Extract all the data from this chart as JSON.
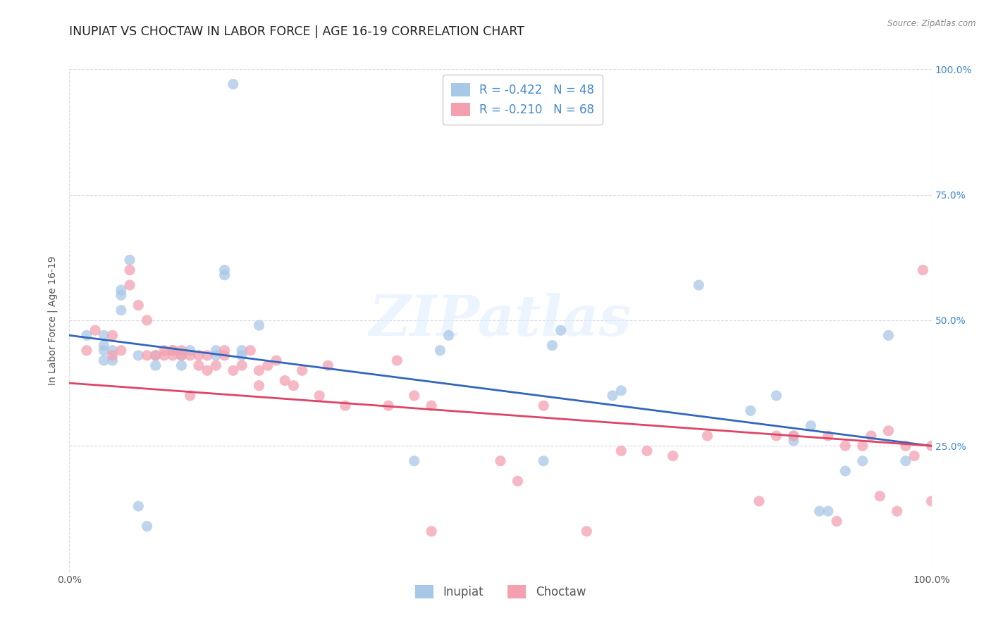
{
  "title": "INUPIAT VS CHOCTAW IN LABOR FORCE | AGE 16-19 CORRELATION CHART",
  "source": "Source: ZipAtlas.com",
  "ylabel": "In Labor Force | Age 16-19",
  "xlim": [
    0.0,
    1.0
  ],
  "ylim": [
    0.0,
    1.0
  ],
  "background_color": "#ffffff",
  "watermark_text": "ZIPatlas",
  "legend_line1": "R = -0.422   N = 48",
  "legend_line2": "R = -0.210   N = 68",
  "inupiat_color": "#a8c8e8",
  "choctaw_color": "#f4a0b0",
  "inupiat_line_color": "#3366bb",
  "choctaw_line_color": "#dd4466",
  "grid_color": "#d8d8e8",
  "right_tick_color": "#4488cc",
  "title_fontsize": 12.5,
  "tick_fontsize": 10,
  "ylabel_fontsize": 10,
  "inupiat_trend_x0": 0.0,
  "inupiat_trend_y0": 0.47,
  "inupiat_trend_x1": 1.0,
  "inupiat_trend_y1": 0.25,
  "choctaw_trend_x0": 0.0,
  "choctaw_trend_y0": 0.375,
  "choctaw_trend_x1": 1.0,
  "choctaw_trend_y1": 0.25,
  "inupiat_x": [
    0.02,
    0.05,
    0.19,
    0.04,
    0.04,
    0.04,
    0.04,
    0.05,
    0.06,
    0.06,
    0.06,
    0.07,
    0.08,
    0.08,
    0.09,
    0.1,
    0.1,
    0.12,
    0.13,
    0.13,
    0.14,
    0.17,
    0.17,
    0.18,
    0.18,
    0.2,
    0.2,
    0.22,
    0.4,
    0.43,
    0.44,
    0.55,
    0.56,
    0.57,
    0.63,
    0.64,
    0.73,
    0.79,
    0.82,
    0.84,
    0.84,
    0.86,
    0.87,
    0.88,
    0.9,
    0.92,
    0.95,
    0.97
  ],
  "inupiat_y": [
    0.47,
    0.44,
    0.97,
    0.42,
    0.44,
    0.45,
    0.47,
    0.42,
    0.52,
    0.55,
    0.56,
    0.62,
    0.13,
    0.43,
    0.09,
    0.41,
    0.43,
    0.44,
    0.41,
    0.43,
    0.44,
    0.43,
    0.44,
    0.59,
    0.6,
    0.43,
    0.44,
    0.49,
    0.22,
    0.44,
    0.47,
    0.22,
    0.45,
    0.48,
    0.35,
    0.36,
    0.57,
    0.32,
    0.35,
    0.26,
    0.27,
    0.29,
    0.12,
    0.12,
    0.2,
    0.22,
    0.47,
    0.22
  ],
  "choctaw_x": [
    0.02,
    0.03,
    0.05,
    0.05,
    0.06,
    0.07,
    0.07,
    0.08,
    0.09,
    0.09,
    0.1,
    0.11,
    0.11,
    0.12,
    0.12,
    0.13,
    0.13,
    0.14,
    0.14,
    0.15,
    0.15,
    0.16,
    0.16,
    0.17,
    0.18,
    0.18,
    0.19,
    0.2,
    0.21,
    0.22,
    0.22,
    0.23,
    0.24,
    0.25,
    0.26,
    0.27,
    0.29,
    0.3,
    0.32,
    0.37,
    0.38,
    0.4,
    0.42,
    0.42,
    0.5,
    0.52,
    0.55,
    0.6,
    0.64,
    0.67,
    0.7,
    0.74,
    0.8,
    0.82,
    0.84,
    0.88,
    0.89,
    0.9,
    0.92,
    0.93,
    0.94,
    0.95,
    0.96,
    0.97,
    0.98,
    0.99,
    1.0,
    1.0
  ],
  "choctaw_y": [
    0.44,
    0.48,
    0.43,
    0.47,
    0.44,
    0.57,
    0.6,
    0.53,
    0.43,
    0.5,
    0.43,
    0.43,
    0.44,
    0.43,
    0.44,
    0.43,
    0.44,
    0.35,
    0.43,
    0.41,
    0.43,
    0.4,
    0.43,
    0.41,
    0.43,
    0.44,
    0.4,
    0.41,
    0.44,
    0.37,
    0.4,
    0.41,
    0.42,
    0.38,
    0.37,
    0.4,
    0.35,
    0.41,
    0.33,
    0.33,
    0.42,
    0.35,
    0.08,
    0.33,
    0.22,
    0.18,
    0.33,
    0.08,
    0.24,
    0.24,
    0.23,
    0.27,
    0.14,
    0.27,
    0.27,
    0.27,
    0.1,
    0.25,
    0.25,
    0.27,
    0.15,
    0.28,
    0.12,
    0.25,
    0.23,
    0.6,
    0.14,
    0.25
  ]
}
